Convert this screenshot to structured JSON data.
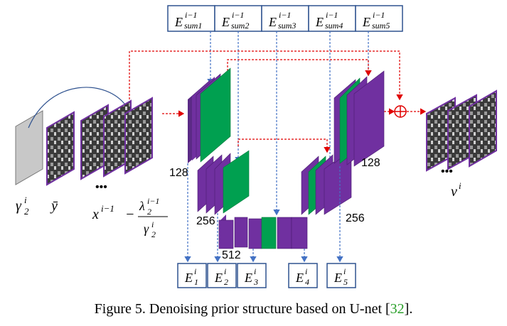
{
  "top_boxes": [
    {
      "base": "E",
      "sup": "i−1",
      "sub": "sum1"
    },
    {
      "base": "E",
      "sup": "i−1",
      "sub": "sum2"
    },
    {
      "base": "E",
      "sup": "i−1",
      "sub": "sum3"
    },
    {
      "base": "E",
      "sup": "i−1",
      "sub": "sum4"
    },
    {
      "base": "E",
      "sup": "i−1",
      "sub": "sum5"
    }
  ],
  "bottom_boxes": [
    {
      "base": "E",
      "sup": "i",
      "sub": "1"
    },
    {
      "base": "E",
      "sup": "i",
      "sub": "2"
    },
    {
      "base": "E",
      "sup": "i",
      "sub": "3"
    },
    {
      "base": "E",
      "sup": "i",
      "sub": "4"
    },
    {
      "base": "E",
      "sup": "i",
      "sub": "5"
    }
  ],
  "labels": {
    "gamma": {
      "base": "γ",
      "sup": "i",
      "sub": "2"
    },
    "ybar": "ȳ",
    "dots": "•••",
    "formula_x": {
      "base": "x",
      "sup": "i−1"
    },
    "formula_minus": "−",
    "formula_num": {
      "base": "λ",
      "sup": "i−1",
      "sub": "2"
    },
    "formula_den": {
      "base": "γ",
      "sup": "i",
      "sub": "2"
    },
    "output": {
      "base": "v",
      "sup": "i"
    }
  },
  "channel_labels": [
    "128",
    "256",
    "512",
    "256",
    "128"
  ],
  "caption": {
    "text": "Figure 5. Denoising prior structure based on U-net [",
    "ref": "32",
    "end": "]."
  },
  "colors": {
    "purple": "#7030a0",
    "green": "#00a050",
    "box_border": "#2f528f",
    "red_dash": "#e00000",
    "blue_dash": "#4472c4"
  }
}
